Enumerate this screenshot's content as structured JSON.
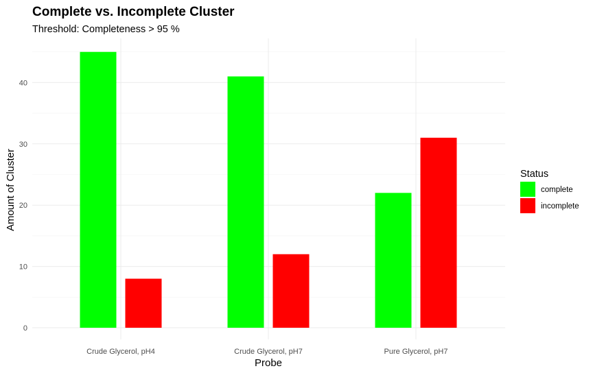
{
  "chart_data": {
    "type": "bar",
    "title": "Complete vs. Incomplete Cluster",
    "subtitle": "Threshold: Completeness > 95 %",
    "xlabel": "Probe",
    "ylabel": "Amount of Cluster",
    "categories": [
      "Crude Glycerol, pH4",
      "Crude Glycerol, pH7",
      "Pure Glycerol, pH7"
    ],
    "series": [
      {
        "name": "complete",
        "values": [
          45,
          41,
          22
        ],
        "color": "#00ff00"
      },
      {
        "name": "incomplete",
        "values": [
          8,
          12,
          31
        ],
        "color": "#ff0000"
      }
    ],
    "ylim": [
      0,
      45
    ],
    "yticks": [
      0,
      10,
      20,
      30,
      40
    ],
    "grid": true,
    "legend": {
      "title": "Status",
      "placement": "right"
    }
  }
}
